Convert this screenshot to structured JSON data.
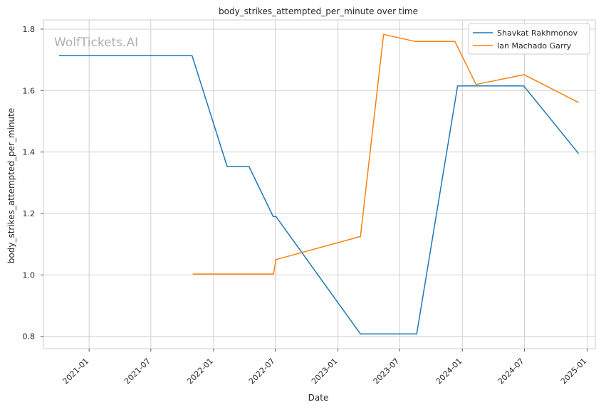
{
  "chart_data": {
    "type": "line",
    "title": "body_strikes_attempted_per_minute over time",
    "xlabel": "Date",
    "ylabel": "body_strikes_attempted_per_minute",
    "watermark": "WolfTickets.AI",
    "xlim": [
      "2020-08-20",
      "2025-01-25"
    ],
    "ylim": [
      0.76,
      1.83
    ],
    "x_ticks": [
      "2021-01",
      "2021-07",
      "2022-01",
      "2022-07",
      "2023-01",
      "2023-07",
      "2024-01",
      "2024-07",
      "2025-01"
    ],
    "y_ticks": [
      "0.8",
      "1.0",
      "1.2",
      "1.4",
      "1.6",
      "1.8"
    ],
    "grid": true,
    "legend_position": "top-right",
    "series": [
      {
        "name": "Shavkat Rakhmonov",
        "color": "#1f77b4",
        "points": [
          {
            "x": "2020-10-05",
            "y": 1.714
          },
          {
            "x": "2021-10-30",
            "y": 1.714
          },
          {
            "x": "2022-02-10",
            "y": 1.353
          },
          {
            "x": "2022-04-15",
            "y": 1.353
          },
          {
            "x": "2022-06-25",
            "y": 1.19
          },
          {
            "x": "2022-07-03",
            "y": 1.19
          },
          {
            "x": "2023-03-08",
            "y": 0.808
          },
          {
            "x": "2023-08-20",
            "y": 0.808
          },
          {
            "x": "2023-12-18",
            "y": 1.615
          },
          {
            "x": "2024-06-29",
            "y": 1.615
          },
          {
            "x": "2024-12-07",
            "y": 1.395
          }
        ]
      },
      {
        "name": "Ian Machado Garry",
        "color": "#ff7f0e",
        "points": [
          {
            "x": "2021-11-01",
            "y": 1.003
          },
          {
            "x": "2022-06-26",
            "y": 1.003
          },
          {
            "x": "2022-07-03",
            "y": 1.05
          },
          {
            "x": "2023-03-08",
            "y": 1.125
          },
          {
            "x": "2023-05-15",
            "y": 1.783
          },
          {
            "x": "2023-08-15",
            "y": 1.76
          },
          {
            "x": "2023-12-10",
            "y": 1.76
          },
          {
            "x": "2024-02-10",
            "y": 1.62
          },
          {
            "x": "2024-06-30",
            "y": 1.652
          },
          {
            "x": "2024-12-07",
            "y": 1.561
          }
        ]
      }
    ]
  }
}
